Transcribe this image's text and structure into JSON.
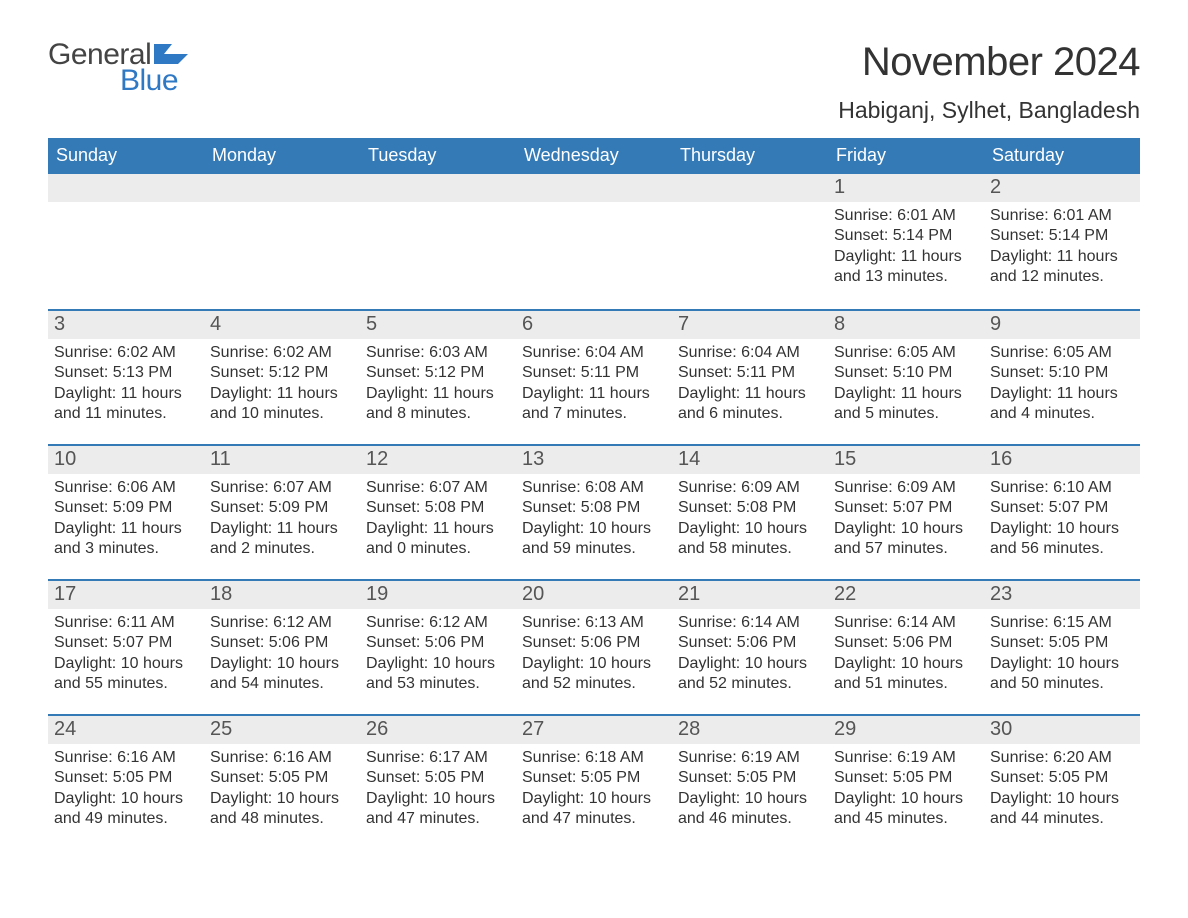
{
  "brand": {
    "word1": "General",
    "word2": "Blue",
    "logo_color": "#2f78c4"
  },
  "title": "November 2024",
  "location": "Habiganj, Sylhet, Bangladesh",
  "colors": {
    "header_bg": "#337ab7",
    "header_text": "#ffffff",
    "daynum_bg": "#ececec",
    "rule": "#337ab7",
    "text": "#333333"
  },
  "daysOfWeek": [
    "Sunday",
    "Monday",
    "Tuesday",
    "Wednesday",
    "Thursday",
    "Friday",
    "Saturday"
  ],
  "weeks": [
    [
      {
        "blank": true
      },
      {
        "blank": true
      },
      {
        "blank": true
      },
      {
        "blank": true
      },
      {
        "blank": true
      },
      {
        "n": "1",
        "sunrise": "6:01 AM",
        "sunset": "5:14 PM",
        "daylight": "11 hours and 13 minutes."
      },
      {
        "n": "2",
        "sunrise": "6:01 AM",
        "sunset": "5:14 PM",
        "daylight": "11 hours and 12 minutes."
      }
    ],
    [
      {
        "n": "3",
        "sunrise": "6:02 AM",
        "sunset": "5:13 PM",
        "daylight": "11 hours and 11 minutes."
      },
      {
        "n": "4",
        "sunrise": "6:02 AM",
        "sunset": "5:12 PM",
        "daylight": "11 hours and 10 minutes."
      },
      {
        "n": "5",
        "sunrise": "6:03 AM",
        "sunset": "5:12 PM",
        "daylight": "11 hours and 8 minutes."
      },
      {
        "n": "6",
        "sunrise": "6:04 AM",
        "sunset": "5:11 PM",
        "daylight": "11 hours and 7 minutes."
      },
      {
        "n": "7",
        "sunrise": "6:04 AM",
        "sunset": "5:11 PM",
        "daylight": "11 hours and 6 minutes."
      },
      {
        "n": "8",
        "sunrise": "6:05 AM",
        "sunset": "5:10 PM",
        "daylight": "11 hours and 5 minutes."
      },
      {
        "n": "9",
        "sunrise": "6:05 AM",
        "sunset": "5:10 PM",
        "daylight": "11 hours and 4 minutes."
      }
    ],
    [
      {
        "n": "10",
        "sunrise": "6:06 AM",
        "sunset": "5:09 PM",
        "daylight": "11 hours and 3 minutes."
      },
      {
        "n": "11",
        "sunrise": "6:07 AM",
        "sunset": "5:09 PM",
        "daylight": "11 hours and 2 minutes."
      },
      {
        "n": "12",
        "sunrise": "6:07 AM",
        "sunset": "5:08 PM",
        "daylight": "11 hours and 0 minutes."
      },
      {
        "n": "13",
        "sunrise": "6:08 AM",
        "sunset": "5:08 PM",
        "daylight": "10 hours and 59 minutes."
      },
      {
        "n": "14",
        "sunrise": "6:09 AM",
        "sunset": "5:08 PM",
        "daylight": "10 hours and 58 minutes."
      },
      {
        "n": "15",
        "sunrise": "6:09 AM",
        "sunset": "5:07 PM",
        "daylight": "10 hours and 57 minutes."
      },
      {
        "n": "16",
        "sunrise": "6:10 AM",
        "sunset": "5:07 PM",
        "daylight": "10 hours and 56 minutes."
      }
    ],
    [
      {
        "n": "17",
        "sunrise": "6:11 AM",
        "sunset": "5:07 PM",
        "daylight": "10 hours and 55 minutes."
      },
      {
        "n": "18",
        "sunrise": "6:12 AM",
        "sunset": "5:06 PM",
        "daylight": "10 hours and 54 minutes."
      },
      {
        "n": "19",
        "sunrise": "6:12 AM",
        "sunset": "5:06 PM",
        "daylight": "10 hours and 53 minutes."
      },
      {
        "n": "20",
        "sunrise": "6:13 AM",
        "sunset": "5:06 PM",
        "daylight": "10 hours and 52 minutes."
      },
      {
        "n": "21",
        "sunrise": "6:14 AM",
        "sunset": "5:06 PM",
        "daylight": "10 hours and 52 minutes."
      },
      {
        "n": "22",
        "sunrise": "6:14 AM",
        "sunset": "5:06 PM",
        "daylight": "10 hours and 51 minutes."
      },
      {
        "n": "23",
        "sunrise": "6:15 AM",
        "sunset": "5:05 PM",
        "daylight": "10 hours and 50 minutes."
      }
    ],
    [
      {
        "n": "24",
        "sunrise": "6:16 AM",
        "sunset": "5:05 PM",
        "daylight": "10 hours and 49 minutes."
      },
      {
        "n": "25",
        "sunrise": "6:16 AM",
        "sunset": "5:05 PM",
        "daylight": "10 hours and 48 minutes."
      },
      {
        "n": "26",
        "sunrise": "6:17 AM",
        "sunset": "5:05 PM",
        "daylight": "10 hours and 47 minutes."
      },
      {
        "n": "27",
        "sunrise": "6:18 AM",
        "sunset": "5:05 PM",
        "daylight": "10 hours and 47 minutes."
      },
      {
        "n": "28",
        "sunrise": "6:19 AM",
        "sunset": "5:05 PM",
        "daylight": "10 hours and 46 minutes."
      },
      {
        "n": "29",
        "sunrise": "6:19 AM",
        "sunset": "5:05 PM",
        "daylight": "10 hours and 45 minutes."
      },
      {
        "n": "30",
        "sunrise": "6:20 AM",
        "sunset": "5:05 PM",
        "daylight": "10 hours and 44 minutes."
      }
    ]
  ],
  "labels": {
    "sunrise": "Sunrise: ",
    "sunset": "Sunset: ",
    "daylight": "Daylight: "
  }
}
